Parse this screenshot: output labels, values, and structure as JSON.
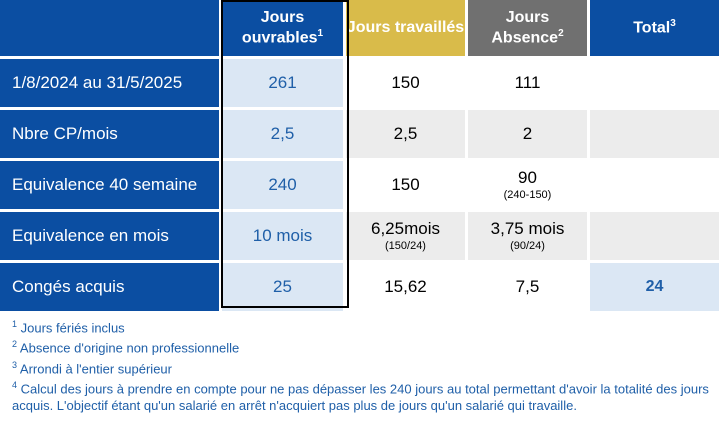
{
  "header": {
    "col1": "Jours ouvrables",
    "col1_sup": "1",
    "col2": "Jours travaillés",
    "col3": "Jours Absence",
    "col3_sup": "2",
    "col4": "Total",
    "col4_sup": "3"
  },
  "rows": [
    {
      "label": "1/8/2024 au 31/5/2025",
      "ouvrables": "261",
      "travailles": "150",
      "absence": "111",
      "total": ""
    },
    {
      "label": "Nbre CP/mois",
      "ouvrables": "2,5",
      "travailles": "2,5",
      "absence": "2",
      "total": ""
    },
    {
      "label": "Equivalence 40 semaine",
      "ouvrables": "240",
      "travailles": "150",
      "absence": "90",
      "absence_sub": "(240-150)",
      "total": ""
    },
    {
      "label": "Equivalence en mois",
      "ouvrables": "10 mois",
      "travailles": "6,25mois",
      "travailles_sub": "(150/24)",
      "absence": "3,75 mois",
      "absence_sub": "(90/24)",
      "total": ""
    },
    {
      "label": "Congés acquis",
      "ouvrables": "25",
      "travailles": "15,62",
      "absence": "7,5",
      "total": "24"
    }
  ],
  "footnotes": [
    {
      "num": "1",
      "text": "Jours fériés inclus"
    },
    {
      "num": "2",
      "text": "Absence d'origine non professionnelle"
    },
    {
      "num": "3",
      "text": "Arrondi à l'entier supérieur"
    },
    {
      "num": "4",
      "text": "Calcul des jours à prendre en compte pour ne pas dépasser les 240 jours au total permettant d'avoir la totalité des jours acquis. L'objectif étant qu'un salarié en arrêt n'acquiert pas plus de jours qu'un salarié qui travaille."
    }
  ],
  "colors": {
    "header_blue": "#0b4ea2",
    "header_gold": "#d9bb4a",
    "header_gray": "#707070",
    "highlight_light_blue": "#dbe7f4",
    "text_blue": "#1f5fa8"
  }
}
